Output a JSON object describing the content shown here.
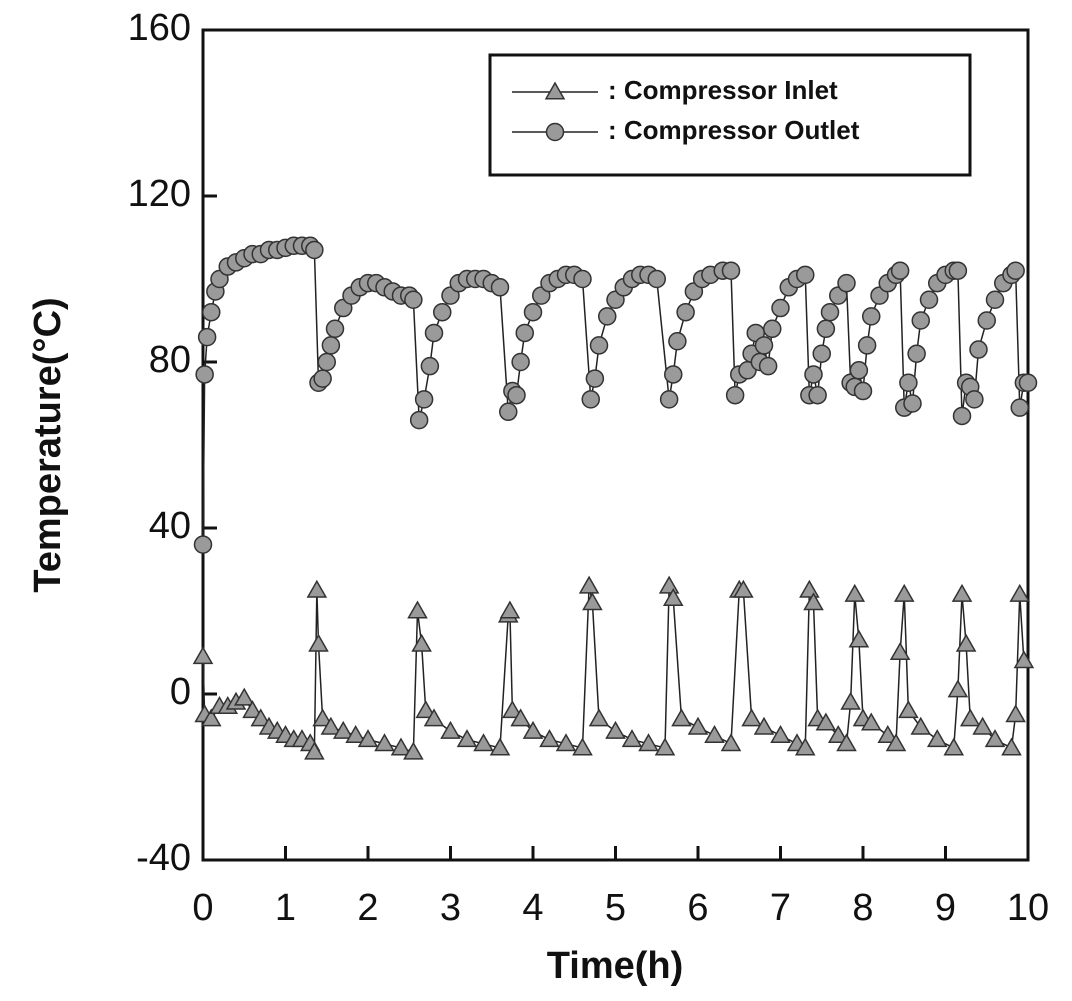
{
  "chart_data": {
    "type": "line",
    "xlabel": "Time(h)",
    "ylabel": "Temperature(°C)",
    "xlim": [
      0,
      10
    ],
    "ylim": [
      -40,
      160
    ],
    "xticks": [
      0,
      1,
      2,
      3,
      4,
      5,
      6,
      7,
      8,
      9,
      10
    ],
    "yticks": [
      -40,
      0,
      40,
      80,
      120,
      160
    ],
    "legend": "upper right",
    "series": [
      {
        "name": ": Compressor Inlet",
        "marker": "triangle",
        "color": "#9a9a9a",
        "x": [
          0,
          0.02,
          0.1,
          0.2,
          0.3,
          0.4,
          0.5,
          0.6,
          0.7,
          0.8,
          0.9,
          1.0,
          1.1,
          1.2,
          1.3,
          1.35,
          1.38,
          1.4,
          1.45,
          1.55,
          1.7,
          1.85,
          2.0,
          2.2,
          2.4,
          2.55,
          2.6,
          2.65,
          2.7,
          2.8,
          3.0,
          3.2,
          3.4,
          3.6,
          3.7,
          3.72,
          3.75,
          3.85,
          4.0,
          4.2,
          4.4,
          4.6,
          4.68,
          4.72,
          4.8,
          5.0,
          5.2,
          5.4,
          5.6,
          5.65,
          5.7,
          5.8,
          6.0,
          6.2,
          6.4,
          6.5,
          6.55,
          6.65,
          6.8,
          7.0,
          7.2,
          7.3,
          7.35,
          7.4,
          7.45,
          7.55,
          7.7,
          7.8,
          7.85,
          7.9,
          7.95,
          8.0,
          8.1,
          8.3,
          8.4,
          8.45,
          8.5,
          8.55,
          8.7,
          8.9,
          9.1,
          9.15,
          9.2,
          9.25,
          9.3,
          9.45,
          9.6,
          9.8,
          9.85,
          9.9,
          9.95
        ],
        "values": [
          9,
          -5,
          -6,
          -3,
          -3,
          -2,
          -1,
          -4,
          -6,
          -8,
          -9,
          -10,
          -11,
          -11,
          -12,
          -14,
          25,
          12,
          -6,
          -8,
          -9,
          -10,
          -11,
          -12,
          -13,
          -14,
          20,
          12,
          -4,
          -6,
          -9,
          -11,
          -12,
          -13,
          19,
          20,
          -4,
          -6,
          -9,
          -11,
          -12,
          -13,
          26,
          22,
          -6,
          -9,
          -11,
          -12,
          -13,
          26,
          23,
          -6,
          -8,
          -10,
          -12,
          25,
          25,
          -6,
          -8,
          -10,
          -12,
          -13,
          25,
          22,
          -6,
          -7,
          -10,
          -12,
          -2,
          24,
          13,
          -6,
          -7,
          -10,
          -12,
          10,
          24,
          -4,
          -8,
          -11,
          -13,
          1,
          24,
          12,
          -6,
          -8,
          -11,
          -13,
          -5,
          24,
          8
        ]
      },
      {
        "name": ": Compressor Outlet",
        "marker": "circle",
        "color": "#9a9a9a",
        "x": [
          0,
          0.02,
          0.05,
          0.1,
          0.15,
          0.2,
          0.3,
          0.4,
          0.5,
          0.6,
          0.7,
          0.8,
          0.9,
          1.0,
          1.1,
          1.2,
          1.3,
          1.35,
          1.4,
          1.45,
          1.5,
          1.55,
          1.6,
          1.7,
          1.8,
          1.9,
          2.0,
          2.1,
          2.2,
          2.3,
          2.4,
          2.5,
          2.55,
          2.62,
          2.68,
          2.75,
          2.8,
          2.9,
          3.0,
          3.1,
          3.2,
          3.3,
          3.4,
          3.5,
          3.6,
          3.7,
          3.75,
          3.8,
          3.85,
          3.9,
          4.0,
          4.1,
          4.2,
          4.3,
          4.4,
          4.5,
          4.6,
          4.7,
          4.75,
          4.8,
          4.9,
          5.0,
          5.1,
          5.2,
          5.3,
          5.4,
          5.5,
          5.65,
          5.7,
          5.75,
          5.85,
          5.95,
          6.05,
          6.15,
          6.3,
          6.4,
          6.45,
          6.5,
          6.6,
          6.65,
          6.7,
          6.75,
          6.8,
          6.85,
          6.9,
          7.0,
          7.1,
          7.2,
          7.3,
          7.35,
          7.4,
          7.45,
          7.5,
          7.55,
          7.6,
          7.7,
          7.8,
          7.85,
          7.9,
          7.95,
          8.0,
          8.05,
          8.1,
          8.2,
          8.3,
          8.4,
          8.45,
          8.5,
          8.55,
          8.6,
          8.65,
          8.7,
          8.8,
          8.9,
          9.0,
          9.1,
          9.15,
          9.2,
          9.25,
          9.3,
          9.35,
          9.4,
          9.5,
          9.6,
          9.7,
          9.8,
          9.85,
          9.9,
          9.95,
          10.0
        ],
        "values": [
          36,
          77,
          86,
          92,
          97,
          100,
          103,
          104,
          105,
          106,
          106,
          107,
          107,
          107.5,
          108,
          108,
          108,
          107,
          75,
          76,
          80,
          84,
          88,
          93,
          96,
          98,
          99,
          99,
          98,
          97,
          96,
          96,
          95,
          66,
          71,
          79,
          87,
          92,
          96,
          99,
          100,
          100,
          100,
          99,
          98,
          68,
          73,
          72,
          80,
          87,
          92,
          96,
          99,
          100,
          101,
          101,
          100,
          71,
          76,
          84,
          91,
          95,
          98,
          100,
          101,
          101,
          100,
          71,
          77,
          85,
          92,
          97,
          100,
          101,
          102,
          102,
          72,
          77,
          78,
          82,
          87,
          80,
          84,
          79,
          88,
          93,
          98,
          100,
          101,
          72,
          77,
          72,
          82,
          88,
          92,
          96,
          99,
          75,
          74,
          78,
          73,
          84,
          91,
          96,
          99,
          101,
          102,
          69,
          75,
          70,
          82,
          90,
          95,
          99,
          101,
          102,
          102,
          67,
          75,
          74,
          71,
          83,
          90,
          95,
          99,
          101,
          102,
          69,
          75,
          75
        ]
      }
    ]
  }
}
